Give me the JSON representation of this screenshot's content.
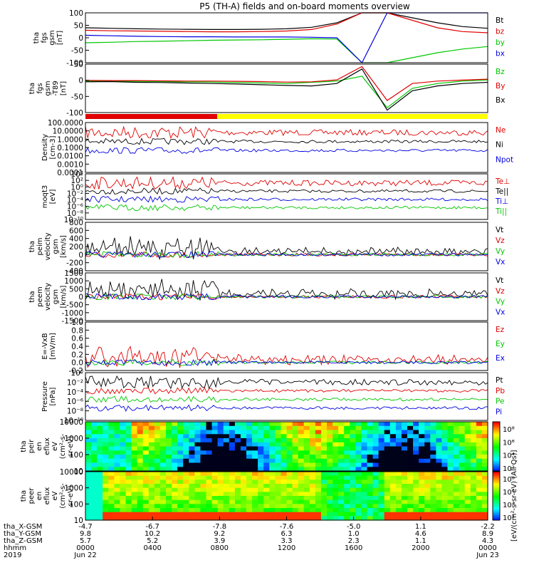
{
  "title": "P5 (TH-A) fields and on-board moments overview",
  "colors": {
    "black": "#000000",
    "red": "#e00000",
    "green": "#00c800",
    "blue": "#0000e0",
    "yellow": "#ffff00"
  },
  "chart_data": [
    {
      "type": "line",
      "ylabel_lines": [
        "tha",
        "fgs",
        "gsm",
        "[nT]"
      ],
      "yticks": [
        100,
        50,
        0,
        -50,
        -100
      ],
      "ylim": [
        -100,
        100
      ],
      "series": [
        {
          "name": "Bt",
          "color": "#000000",
          "values": [
            40,
            38,
            36,
            35,
            34,
            33,
            33,
            34,
            36,
            42,
            60,
            100,
            100,
            80,
            60,
            45,
            38
          ]
        },
        {
          "name": "bz",
          "color": "#e00000",
          "values": [
            30,
            28,
            27,
            26,
            25,
            24,
            24,
            25,
            27,
            33,
            55,
            100,
            100,
            70,
            40,
            25,
            20
          ]
        },
        {
          "name": "by",
          "color": "#00c800",
          "values": [
            -20,
            -18,
            -15,
            -14,
            -12,
            -10,
            -9,
            -8,
            -6,
            -4,
            -5,
            -100,
            -100,
            -80,
            -60,
            -45,
            -35
          ]
        },
        {
          "name": "bx",
          "color": "#0000e0",
          "values": [
            10,
            8,
            6,
            5,
            4,
            4,
            3,
            3,
            3,
            2,
            0,
            -100,
            100,
            100,
            100,
            100,
            100
          ]
        }
      ]
    },
    {
      "type": "line",
      "ylabel_lines": [
        "tha",
        "fgs",
        "gsm",
        "-T89",
        "[nT]"
      ],
      "yticks": [
        50,
        0,
        -50,
        -100
      ],
      "ylim": [
        -130,
        70
      ],
      "series": [
        {
          "name": "Bz",
          "color": "#00c800",
          "values": [
            0,
            0,
            -1,
            -2,
            -3,
            -4,
            -6,
            -8,
            -10,
            -5,
            0,
            20,
            -110,
            -30,
            -10,
            0,
            5
          ]
        },
        {
          "name": "By",
          "color": "#e00000",
          "values": [
            3,
            2,
            2,
            1,
            0,
            0,
            -1,
            -2,
            -4,
            -3,
            5,
            60,
            -80,
            -10,
            0,
            4,
            8
          ]
        },
        {
          "name": "Bx",
          "color": "#000000",
          "values": [
            -3,
            -2,
            -5,
            -6,
            -8,
            -10,
            -12,
            -15,
            -18,
            -20,
            -10,
            50,
            -120,
            -40,
            -20,
            -10,
            -5
          ]
        }
      ]
    },
    {
      "type": "line",
      "ylabel_lines": [
        "Density",
        "[cm-3]"
      ],
      "yticks": [
        "100.0000",
        "10.0000",
        "1.0000",
        "0.1000",
        "0.0100",
        "0.0010",
        "0.0001"
      ],
      "log": true,
      "series": [
        {
          "name": "Ne",
          "color": "#e00000"
        },
        {
          "name": "Ni",
          "color": "#000000"
        },
        {
          "name": "Npot",
          "color": "#0000e0"
        }
      ]
    },
    {
      "type": "line",
      "ylabel_lines": [
        "moqt3",
        "[eV]"
      ],
      "yticks": [
        "10⁴",
        "10²",
        "10⁰",
        "10⁻²",
        "10⁻⁴",
        "10⁻⁶",
        "10⁻⁸",
        "10⁻¹⁰"
      ],
      "log": true,
      "series": [
        {
          "name": "Te⊥",
          "color": "#e00000"
        },
        {
          "name": "Te||",
          "color": "#000000"
        },
        {
          "name": "Ti⊥",
          "color": "#0000e0"
        },
        {
          "name": "Ti||",
          "color": "#00c800"
        }
      ]
    },
    {
      "type": "line",
      "ylabel_lines": [
        "tha",
        "peim",
        "velocity",
        "gsm",
        "[km/s]"
      ],
      "yticks": [
        800,
        600,
        400,
        200,
        0,
        -200,
        -400
      ],
      "ylim": [
        -400,
        800
      ],
      "series": [
        {
          "name": "Vt",
          "color": "#000000"
        },
        {
          "name": "Vz",
          "color": "#e00000"
        },
        {
          "name": "Vy",
          "color": "#00c800"
        },
        {
          "name": "Vx",
          "color": "#0000e0"
        }
      ]
    },
    {
      "type": "line",
      "ylabel_lines": [
        "tha",
        "peem",
        "velocity",
        "gsm",
        "[km/s]"
      ],
      "yticks": [
        1500,
        1000,
        500,
        0,
        -500,
        -1000,
        -1500
      ],
      "ylim": [
        -1500,
        1500
      ],
      "series": [
        {
          "name": "Vt",
          "color": "#000000"
        },
        {
          "name": "Vz",
          "color": "#e00000"
        },
        {
          "name": "Vy",
          "color": "#00c800"
        },
        {
          "name": "Vx",
          "color": "#0000e0"
        }
      ]
    },
    {
      "type": "line",
      "ylabel_lines": [
        "E=-VxB",
        "[mV/m]"
      ],
      "yticks": [
        "1.0",
        "0.8",
        "0.6",
        "0.4",
        "0.2",
        "0.0",
        "-0.2"
      ],
      "ylim": [
        -0.2,
        1.0
      ],
      "series": [
        {
          "name": "Ez",
          "color": "#e00000"
        },
        {
          "name": "Ey",
          "color": "#00c800"
        },
        {
          "name": "Ex",
          "color": "#0000e0"
        }
      ]
    },
    {
      "type": "line",
      "ylabel_lines": [
        "Pressure",
        "[nPa]"
      ],
      "yticks": [
        "10⁰",
        "10⁻²",
        "10⁻⁴",
        "10⁻⁶",
        "10⁻⁸",
        "10⁻¹⁰"
      ],
      "log": true,
      "series": [
        {
          "name": "Pt",
          "color": "#000000"
        },
        {
          "name": "Pb",
          "color": "#e00000"
        },
        {
          "name": "Pe",
          "color": "#00c800"
        },
        {
          "name": "Pi",
          "color": "#0000e0"
        }
      ]
    },
    {
      "type": "heatmap",
      "ylabel_lines": [
        "tha",
        "peir",
        "en",
        "eflux",
        "eV",
        "(cm²-s-",
        "sr-eV)"
      ],
      "yticks": [
        "10000",
        "1000",
        "100",
        "10"
      ]
    },
    {
      "type": "heatmap",
      "ylabel_lines": [
        "tha",
        "peer",
        "en",
        "eflux",
        "eV",
        "(cm²-s-",
        "sr-eV)"
      ],
      "yticks": [
        "10000",
        "1000",
        "100",
        "10"
      ]
    }
  ],
  "colorbar": {
    "label": "[eV/(cm²-s-sr-eV) (All Qs)]",
    "ticks_top": [
      "10⁸",
      "10⁶",
      "10⁴",
      "10²"
    ],
    "ticks_bottom": [
      "10⁸",
      "10⁶",
      "10⁴",
      "10²"
    ]
  },
  "xaxis": {
    "rows": [
      {
        "label": "tha_X-GSM",
        "values": [
          "-4.7",
          "-6.7",
          "-7.8",
          "-7.6",
          "-5.0",
          "1.1",
          "-2.2"
        ]
      },
      {
        "label": "tha_Y-GSM",
        "values": [
          "9.8",
          "10.2",
          "9.2",
          "6.3",
          "1.0",
          "4.6",
          "8.9"
        ]
      },
      {
        "label": "tha_Z-GSM",
        "values": [
          "5.7",
          "5.2",
          "3.9",
          "3.3",
          "2.3",
          "1.1",
          "4.3"
        ]
      },
      {
        "label": "hhmm",
        "values": [
          "0000",
          "0400",
          "0800",
          "1200",
          "1600",
          "2000",
          "0000"
        ]
      },
      {
        "label": "2019",
        "values": [
          "Jun 22",
          "",
          "",
          "",
          "",
          "",
          "Jun 23"
        ]
      }
    ]
  }
}
